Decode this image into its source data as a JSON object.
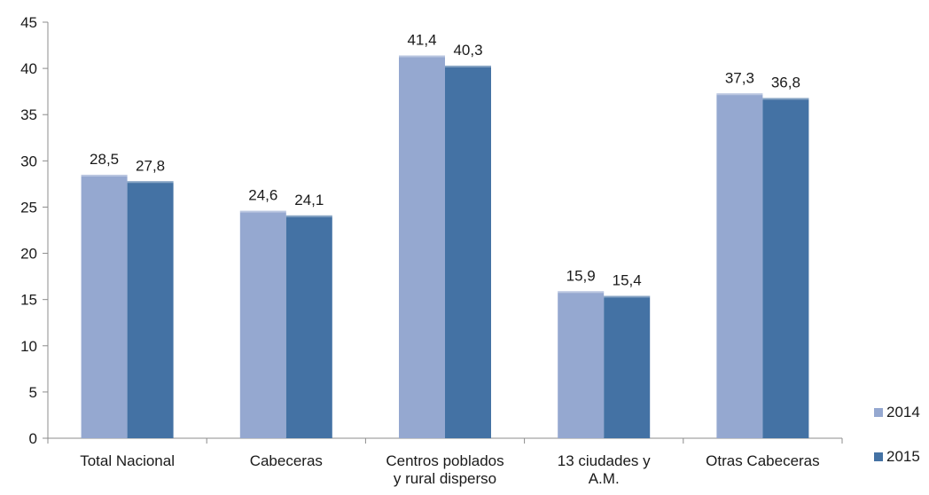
{
  "chart_data": {
    "type": "bar",
    "categories": [
      "Total Nacional",
      "Cabeceras",
      "Centros poblados y rural disperso",
      "13 ciudades y A.M.",
      "Otras Cabeceras"
    ],
    "category_lines": [
      [
        "Total Nacional"
      ],
      [
        "Cabeceras"
      ],
      [
        "Centros poblados",
        "y rural disperso"
      ],
      [
        "13 ciudades y",
        "A.M."
      ],
      [
        "Otras Cabeceras"
      ]
    ],
    "series": [
      {
        "name": "2014",
        "color": "#95A8D0",
        "values": [
          28.5,
          24.6,
          41.4,
          15.9,
          37.3
        ],
        "labels": [
          "28,5",
          "24,6",
          "41,4",
          "15,9",
          "37,3"
        ]
      },
      {
        "name": "2015",
        "color": "#4472A4",
        "values": [
          27.8,
          24.1,
          40.3,
          15.4,
          36.8
        ],
        "labels": [
          "27,8",
          "24,1",
          "40,3",
          "15,4",
          "36,8"
        ]
      }
    ],
    "y_ticks": [
      0,
      5,
      10,
      15,
      20,
      25,
      30,
      35,
      40,
      45
    ],
    "ylim": [
      0,
      45
    ],
    "grid": false,
    "legend_position": "right-bottom",
    "title": "",
    "xlabel": "",
    "ylabel": ""
  }
}
